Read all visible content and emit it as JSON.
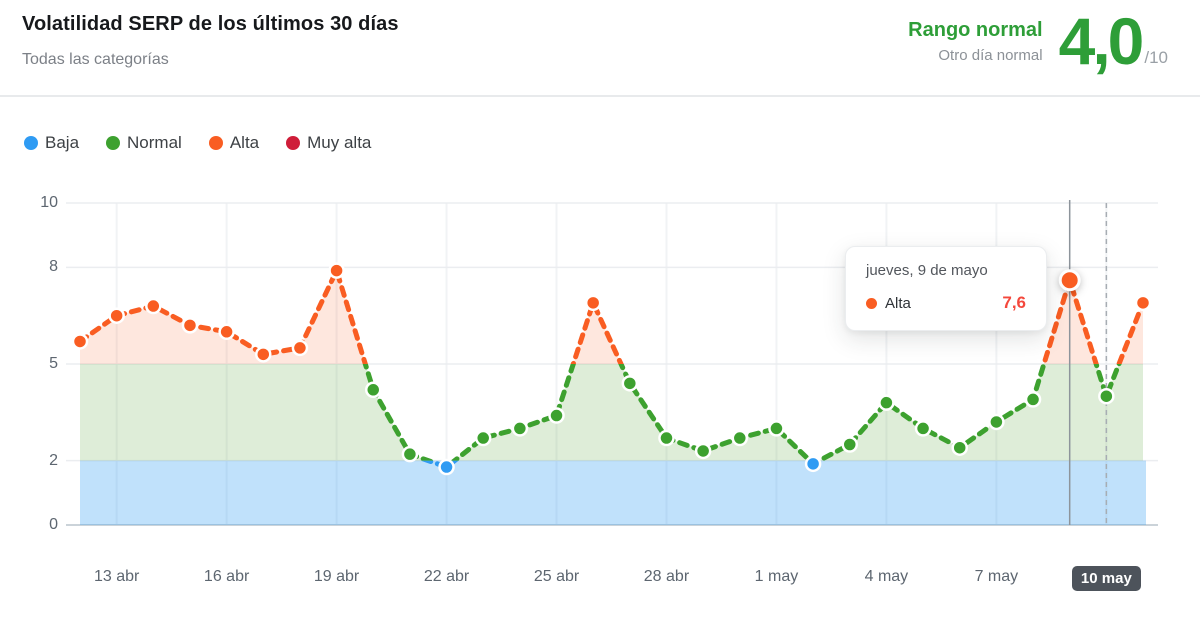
{
  "header": {
    "title": "Volatilidad SERP de los últimos 30 días",
    "subtitle": "Todas las categorías",
    "status_label": "Rango normal",
    "status_sublabel": "Otro día normal",
    "score": "4,0",
    "score_suffix": "/10",
    "accent_green": "#2e9e38"
  },
  "legend": {
    "items": [
      {
        "label": "Baja",
        "color": "#2f9bf3"
      },
      {
        "label": "Normal",
        "color": "#3da12f"
      },
      {
        "label": "Alta",
        "color": "#f95d22"
      },
      {
        "label": "Muy alta",
        "color": "#cf1d39"
      }
    ]
  },
  "tooltip": {
    "date_label": "jueves, 9 de mayo",
    "series_label": "Alta",
    "value": "7,6",
    "value_color": "#f4483c",
    "dot_color": "#f95d22"
  },
  "chart_data": {
    "type": "line",
    "title": "Volatilidad SERP de los últimos 30 días",
    "ylabel": "",
    "xlabel": "",
    "ylim": [
      0,
      10
    ],
    "y_ticks": [
      0,
      2,
      5,
      8,
      10
    ],
    "grid": true,
    "legend_position": "top-left",
    "dates": [
      "12 abr",
      "13 abr",
      "14 abr",
      "15 abr",
      "16 abr",
      "17 abr",
      "18 abr",
      "19 abr",
      "20 abr",
      "21 abr",
      "22 abr",
      "23 abr",
      "24 abr",
      "25 abr",
      "26 abr",
      "27 abr",
      "28 abr",
      "29 abr",
      "30 abr",
      "1 may",
      "2 may",
      "3 may",
      "4 may",
      "5 may",
      "6 may",
      "7 may",
      "8 may",
      "9 may",
      "10 may",
      "11 may"
    ],
    "values": [
      5.7,
      6.5,
      6.8,
      6.2,
      6.0,
      5.3,
      5.5,
      7.9,
      4.2,
      2.2,
      1.8,
      2.7,
      3.0,
      3.4,
      6.9,
      4.4,
      2.7,
      2.3,
      2.7,
      3.0,
      1.9,
      2.5,
      3.8,
      3.0,
      2.4,
      3.2,
      3.9,
      7.6,
      4.0,
      6.9
    ],
    "x_tick_labels": [
      "13 abr",
      "16 abr",
      "19 abr",
      "22 abr",
      "25 abr",
      "28 abr",
      "1 may",
      "4 may",
      "7 may",
      "10 may"
    ],
    "x_tick_indices": [
      1,
      4,
      7,
      10,
      13,
      16,
      19,
      22,
      25,
      28
    ],
    "highlighted_x_tick": "10 may",
    "hover_index": 27,
    "hover_value_label": "7,6",
    "dashed_line_index": 28,
    "bands": [
      {
        "name": "baja",
        "label": "Baja",
        "range": [
          0,
          2
        ],
        "dot_color": "#2f9bf3",
        "fill": "rgba(47,155,243,0.30)"
      },
      {
        "name": "normal",
        "label": "Normal",
        "range": [
          2,
          5
        ],
        "dot_color": "#3da12f",
        "fill": "rgba(106,175,76,0.22)"
      },
      {
        "name": "alta",
        "label": "Alta",
        "range": [
          5,
          8
        ],
        "dot_color": "#f95d22",
        "fill": "rgba(249,93,34,0.15)"
      },
      {
        "name": "muy_alta",
        "label": "Muy alta",
        "range": [
          8,
          10
        ],
        "dot_color": "#cf1d39",
        "fill": "rgba(207,29,57,0.15)"
      }
    ]
  }
}
